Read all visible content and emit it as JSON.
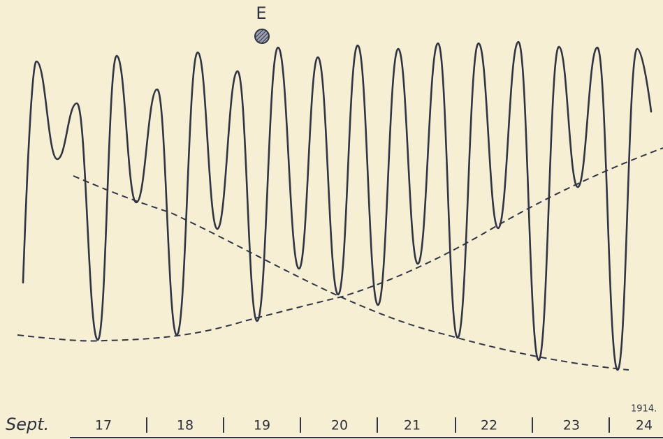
{
  "marker": "E",
  "axis": {
    "month": "Sept.",
    "year": "1914.",
    "days": [
      "17",
      "18",
      "19",
      "20",
      "21",
      "22",
      "23",
      "24"
    ]
  }
}
